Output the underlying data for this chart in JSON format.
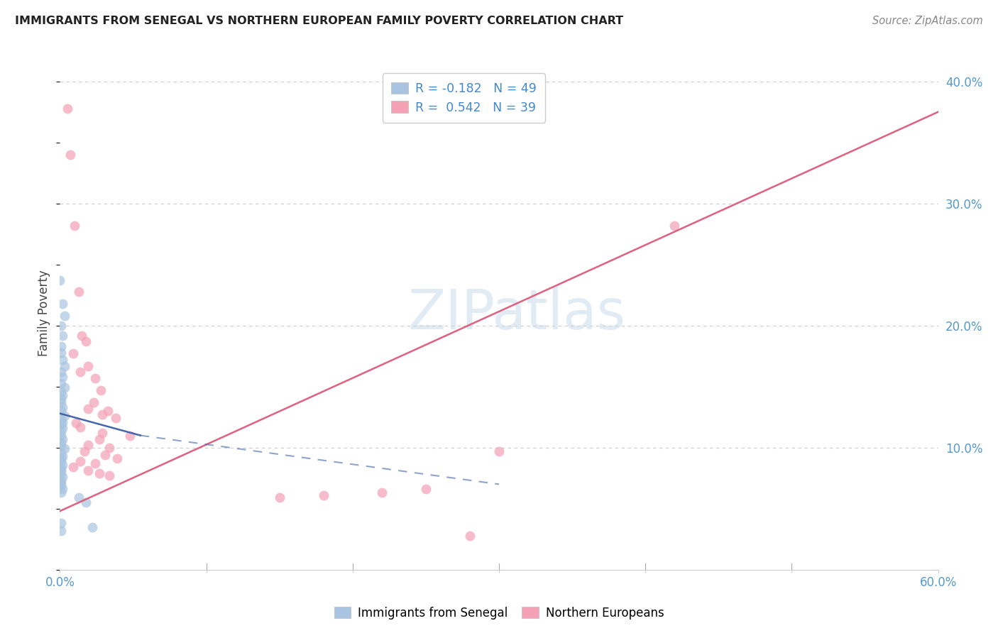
{
  "title": "IMMIGRANTS FROM SENEGAL VS NORTHERN EUROPEAN FAMILY POVERTY CORRELATION CHART",
  "source": "Source: ZipAtlas.com",
  "ylabel": "Family Poverty",
  "xlim": [
    0.0,
    0.6
  ],
  "ylim": [
    0.0,
    0.42
  ],
  "right_ytick_vals": [
    0.0,
    0.1,
    0.2,
    0.3,
    0.4
  ],
  "right_ytick_labels": [
    "",
    "10.0%",
    "20.0%",
    "30.0%",
    "40.0%"
  ],
  "watermark": "ZIPatlas",
  "blue_color": "#a8c4e0",
  "pink_color": "#f4a0b5",
  "blue_line_color": "#4466aa",
  "pink_line_color": "#e06080",
  "blue_scatter": [
    [
      0.0,
      0.237
    ],
    [
      0.002,
      0.218
    ],
    [
      0.003,
      0.208
    ],
    [
      0.001,
      0.2
    ],
    [
      0.002,
      0.192
    ],
    [
      0.001,
      0.183
    ],
    [
      0.001,
      0.178
    ],
    [
      0.002,
      0.172
    ],
    [
      0.003,
      0.167
    ],
    [
      0.001,
      0.162
    ],
    [
      0.002,
      0.158
    ],
    [
      0.001,
      0.153
    ],
    [
      0.003,
      0.149
    ],
    [
      0.001,
      0.146
    ],
    [
      0.002,
      0.143
    ],
    [
      0.001,
      0.14
    ],
    [
      0.001,
      0.137
    ],
    [
      0.002,
      0.133
    ],
    [
      0.001,
      0.13
    ],
    [
      0.003,
      0.126
    ],
    [
      0.001,
      0.123
    ],
    [
      0.002,
      0.121
    ],
    [
      0.001,
      0.119
    ],
    [
      0.002,
      0.116
    ],
    [
      0.001,
      0.113
    ],
    [
      0.001,
      0.11
    ],
    [
      0.002,
      0.107
    ],
    [
      0.001,
      0.104
    ],
    [
      0.001,
      0.101
    ],
    [
      0.003,
      0.099
    ],
    [
      0.001,
      0.096
    ],
    [
      0.002,
      0.093
    ],
    [
      0.001,
      0.091
    ],
    [
      0.001,
      0.089
    ],
    [
      0.002,
      0.086
    ],
    [
      0.001,
      0.083
    ],
    [
      0.001,
      0.081
    ],
    [
      0.001,
      0.079
    ],
    [
      0.002,
      0.076
    ],
    [
      0.001,
      0.073
    ],
    [
      0.001,
      0.071
    ],
    [
      0.001,
      0.069
    ],
    [
      0.002,
      0.066
    ],
    [
      0.001,
      0.063
    ],
    [
      0.013,
      0.059
    ],
    [
      0.018,
      0.055
    ],
    [
      0.001,
      0.038
    ],
    [
      0.022,
      0.035
    ],
    [
      0.001,
      0.032
    ]
  ],
  "pink_scatter": [
    [
      0.005,
      0.378
    ],
    [
      0.007,
      0.34
    ],
    [
      0.01,
      0.282
    ],
    [
      0.013,
      0.228
    ],
    [
      0.015,
      0.192
    ],
    [
      0.018,
      0.187
    ],
    [
      0.009,
      0.177
    ],
    [
      0.019,
      0.167
    ],
    [
      0.014,
      0.162
    ],
    [
      0.024,
      0.157
    ],
    [
      0.028,
      0.147
    ],
    [
      0.023,
      0.137
    ],
    [
      0.019,
      0.132
    ],
    [
      0.033,
      0.13
    ],
    [
      0.029,
      0.127
    ],
    [
      0.038,
      0.124
    ],
    [
      0.011,
      0.12
    ],
    [
      0.014,
      0.117
    ],
    [
      0.029,
      0.112
    ],
    [
      0.048,
      0.11
    ],
    [
      0.027,
      0.107
    ],
    [
      0.019,
      0.102
    ],
    [
      0.034,
      0.1
    ],
    [
      0.017,
      0.097
    ],
    [
      0.031,
      0.094
    ],
    [
      0.039,
      0.091
    ],
    [
      0.014,
      0.089
    ],
    [
      0.024,
      0.087
    ],
    [
      0.009,
      0.084
    ],
    [
      0.019,
      0.081
    ],
    [
      0.027,
      0.079
    ],
    [
      0.034,
      0.077
    ],
    [
      0.42,
      0.282
    ],
    [
      0.3,
      0.097
    ],
    [
      0.25,
      0.066
    ],
    [
      0.22,
      0.063
    ],
    [
      0.18,
      0.061
    ],
    [
      0.15,
      0.059
    ],
    [
      0.28,
      0.028
    ]
  ],
  "pink_line": [
    [
      0.0,
      0.048
    ],
    [
      0.6,
      0.375
    ]
  ],
  "blue_line": [
    [
      0.0,
      0.128
    ],
    [
      0.055,
      0.11
    ]
  ],
  "grid_color": "#cccccc",
  "background_color": "#ffffff",
  "legend1_label": "R = -0.182   N = 49",
  "legend2_label": "R =  0.542   N = 39"
}
